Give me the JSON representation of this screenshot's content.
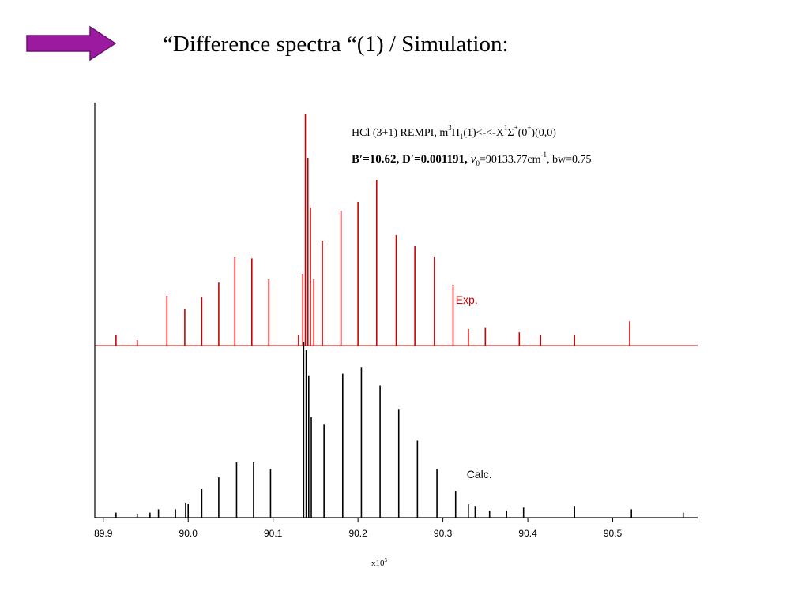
{
  "slide": {
    "title": "“Difference spectra “(1) / Simulation:",
    "arrow_icon": "right-arrow-icon",
    "arrow_color": "#9b1aa0",
    "arrow_outline": "#6a1270"
  },
  "chart_data": {
    "type": "line",
    "x_range": [
      89.89,
      90.6
    ],
    "x_ticks": [
      89.9,
      90.0,
      90.1,
      90.2,
      90.3,
      90.4,
      90.5
    ],
    "x_tick_labels": [
      "89.9",
      "90.0",
      "90.1",
      "90.2",
      "90.3",
      "90.4",
      "90.5"
    ],
    "x_multiplier": "x10",
    "x_multiplier_exp": "3",
    "grid": false,
    "annotations": {
      "line1": {
        "a": "HCl (3+1) REMPI, m",
        "sup1": "3",
        "b": "Π",
        "sub1": "1",
        "c": "(1)<-<-X",
        "sup2": "1",
        "d": "Σ",
        "sup3": "+",
        "e": "(0",
        "sup4": "+",
        "f": ")(0,0)"
      },
      "line2": {
        "a": "B′=10.62, D′=0.001191,",
        "b": "ν",
        "sub1": "0",
        "c": "=90133.77cm",
        "sup1": "-1",
        "d": ", bw=0.75"
      }
    },
    "series": [
      {
        "name": "Exp.",
        "color": "#cc0000",
        "peaks": [
          [
            89.915,
            0.1
          ],
          [
            89.94,
            0.05
          ],
          [
            89.975,
            0.45
          ],
          [
            89.996,
            0.33
          ],
          [
            90.016,
            0.44
          ],
          [
            90.036,
            0.57
          ],
          [
            90.055,
            0.8
          ],
          [
            90.075,
            0.79
          ],
          [
            90.095,
            0.6
          ],
          [
            90.13,
            0.1
          ],
          [
            90.135,
            0.65
          ],
          [
            90.138,
            2.1
          ],
          [
            90.141,
            1.7
          ],
          [
            90.144,
            1.25
          ],
          [
            90.148,
            0.6
          ],
          [
            90.158,
            0.95
          ],
          [
            90.18,
            1.22
          ],
          [
            90.2,
            1.3
          ],
          [
            90.222,
            1.5
          ],
          [
            90.245,
            1.0
          ],
          [
            90.267,
            0.9
          ],
          [
            90.29,
            0.8
          ],
          [
            90.312,
            0.55
          ],
          [
            90.33,
            0.15
          ],
          [
            90.35,
            0.16
          ],
          [
            90.39,
            0.12
          ],
          [
            90.415,
            0.1
          ],
          [
            90.455,
            0.1
          ],
          [
            90.52,
            0.22
          ]
        ]
      },
      {
        "name": "Calc.",
        "color": "#000000",
        "peaks": [
          [
            89.915,
            0.03
          ],
          [
            89.94,
            0.02
          ],
          [
            89.955,
            0.03
          ],
          [
            89.965,
            0.05
          ],
          [
            89.985,
            0.05
          ],
          [
            89.997,
            0.09
          ],
          [
            90.0,
            0.08
          ],
          [
            90.016,
            0.17
          ],
          [
            90.036,
            0.24
          ],
          [
            90.057,
            0.33
          ],
          [
            90.077,
            0.33
          ],
          [
            90.097,
            0.29
          ],
          [
            90.136,
            1.05
          ],
          [
            90.139,
            1.0
          ],
          [
            90.142,
            0.85
          ],
          [
            90.145,
            0.6
          ],
          [
            90.16,
            0.56
          ],
          [
            90.182,
            0.86
          ],
          [
            90.204,
            0.9
          ],
          [
            90.226,
            0.79
          ],
          [
            90.248,
            0.65
          ],
          [
            90.27,
            0.46
          ],
          [
            90.293,
            0.29
          ],
          [
            90.315,
            0.16
          ],
          [
            90.33,
            0.08
          ],
          [
            90.338,
            0.07
          ],
          [
            90.355,
            0.04
          ],
          [
            90.375,
            0.04
          ],
          [
            90.395,
            0.06
          ],
          [
            90.455,
            0.07
          ],
          [
            90.522,
            0.05
          ],
          [
            90.583,
            0.03
          ]
        ]
      }
    ]
  }
}
